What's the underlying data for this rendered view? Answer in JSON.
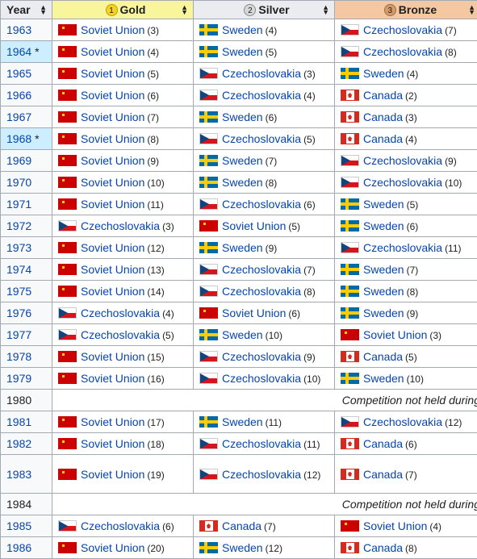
{
  "header": {
    "year": "Year",
    "gold": "Gold",
    "silver": "Silver",
    "bronze": "Bronze",
    "gold_icon": "1",
    "silver_icon": "2",
    "bronze_icon": "3",
    "sort_up": "▲",
    "sort_down": "▼"
  },
  "rows": [
    {
      "year": "1963",
      "host": false,
      "star": "",
      "gold": {
        "team": "Soviet Union",
        "count": "(3)"
      },
      "silver": {
        "team": "Sweden",
        "count": "(4)"
      },
      "bronze": {
        "team": "Czechoslovakia",
        "count": "(7)"
      }
    },
    {
      "year": "1964",
      "host": true,
      "star": "*",
      "gold": {
        "team": "Soviet Union",
        "count": "(4)"
      },
      "silver": {
        "team": "Sweden",
        "count": "(5)"
      },
      "bronze": {
        "team": "Czechoslovakia",
        "count": "(8)"
      }
    },
    {
      "year": "1965",
      "host": false,
      "star": "",
      "gold": {
        "team": "Soviet Union",
        "count": "(5)"
      },
      "silver": {
        "team": "Czechoslovakia",
        "count": "(3)"
      },
      "bronze": {
        "team": "Sweden",
        "count": "(4)"
      }
    },
    {
      "year": "1966",
      "host": false,
      "star": "",
      "gold": {
        "team": "Soviet Union",
        "count": "(6)"
      },
      "silver": {
        "team": "Czechoslovakia",
        "count": "(4)"
      },
      "bronze": {
        "team": "Canada",
        "count": "(2)"
      }
    },
    {
      "year": "1967",
      "host": false,
      "star": "",
      "gold": {
        "team": "Soviet Union",
        "count": "(7)"
      },
      "silver": {
        "team": "Sweden",
        "count": "(6)"
      },
      "bronze": {
        "team": "Canada",
        "count": "(3)"
      }
    },
    {
      "year": "1968",
      "host": true,
      "star": "*",
      "gold": {
        "team": "Soviet Union",
        "count": "(8)"
      },
      "silver": {
        "team": "Czechoslovakia",
        "count": "(5)"
      },
      "bronze": {
        "team": "Canada",
        "count": "(4)"
      }
    },
    {
      "year": "1969",
      "host": false,
      "star": "",
      "gold": {
        "team": "Soviet Union",
        "count": "(9)"
      },
      "silver": {
        "team": "Sweden",
        "count": "(7)"
      },
      "bronze": {
        "team": "Czechoslovakia",
        "count": "(9)"
      }
    },
    {
      "year": "1970",
      "host": false,
      "star": "",
      "gold": {
        "team": "Soviet Union",
        "count": "(10)"
      },
      "silver": {
        "team": "Sweden",
        "count": "(8)"
      },
      "bronze": {
        "team": "Czechoslovakia",
        "count": "(10)"
      }
    },
    {
      "year": "1971",
      "host": false,
      "star": "",
      "gold": {
        "team": "Soviet Union",
        "count": "(11)"
      },
      "silver": {
        "team": "Czechoslovakia",
        "count": "(6)"
      },
      "bronze": {
        "team": "Sweden",
        "count": "(5)"
      }
    },
    {
      "year": "1972",
      "host": false,
      "star": "",
      "gold": {
        "team": "Czechoslovakia",
        "count": "(3)"
      },
      "silver": {
        "team": "Soviet Union",
        "count": "(5)"
      },
      "bronze": {
        "team": "Sweden",
        "count": "(6)"
      }
    },
    {
      "year": "1973",
      "host": false,
      "star": "",
      "gold": {
        "team": "Soviet Union",
        "count": "(12)"
      },
      "silver": {
        "team": "Sweden",
        "count": "(9)"
      },
      "bronze": {
        "team": "Czechoslovakia",
        "count": "(11)"
      }
    },
    {
      "year": "1974",
      "host": false,
      "star": "",
      "gold": {
        "team": "Soviet Union",
        "count": "(13)"
      },
      "silver": {
        "team": "Czechoslovakia",
        "count": "(7)"
      },
      "bronze": {
        "team": "Sweden",
        "count": "(7)"
      }
    },
    {
      "year": "1975",
      "host": false,
      "star": "",
      "gold": {
        "team": "Soviet Union",
        "count": "(14)"
      },
      "silver": {
        "team": "Czechoslovakia",
        "count": "(8)"
      },
      "bronze": {
        "team": "Sweden",
        "count": "(8)"
      }
    },
    {
      "year": "1976",
      "host": false,
      "star": "",
      "gold": {
        "team": "Czechoslovakia",
        "count": "(4)"
      },
      "silver": {
        "team": "Soviet Union",
        "count": "(6)"
      },
      "bronze": {
        "team": "Sweden",
        "count": "(9)"
      }
    },
    {
      "year": "1977",
      "host": false,
      "star": "",
      "gold": {
        "team": "Czechoslovakia",
        "count": "(5)"
      },
      "silver": {
        "team": "Sweden",
        "count": "(10)"
      },
      "bronze": {
        "team": "Soviet Union",
        "count": "(3)"
      }
    },
    {
      "year": "1978",
      "host": false,
      "star": "",
      "gold": {
        "team": "Soviet Union",
        "count": "(15)"
      },
      "silver": {
        "team": "Czechoslovakia",
        "count": "(9)"
      },
      "bronze": {
        "team": "Canada",
        "count": "(5)"
      }
    },
    {
      "year": "1979",
      "host": false,
      "star": "",
      "gold": {
        "team": "Soviet Union",
        "count": "(16)"
      },
      "silver": {
        "team": "Czechoslovakia",
        "count": "(10)"
      },
      "bronze": {
        "team": "Sweden",
        "count": "(10)"
      }
    },
    {
      "year": "1980",
      "notheld": "Competition not held during"
    },
    {
      "year": "1981",
      "host": false,
      "star": "",
      "gold": {
        "team": "Soviet Union",
        "count": "(17)"
      },
      "silver": {
        "team": "Sweden",
        "count": "(11)"
      },
      "bronze": {
        "team": "Czechoslovakia",
        "count": "(12)"
      }
    },
    {
      "year": "1982",
      "host": false,
      "star": "",
      "gold": {
        "team": "Soviet Union",
        "count": "(18)"
      },
      "silver": {
        "team": "Czechoslovakia",
        "count": "(11)"
      },
      "bronze": {
        "team": "Canada",
        "count": "(6)"
      }
    },
    {
      "year": "1983",
      "host": false,
      "star": "",
      "tall": true,
      "gold": {
        "team": "Soviet Union",
        "count": "(19)"
      },
      "silver": {
        "team": "Czechoslovakia",
        "count": "(12)"
      },
      "bronze": {
        "team": "Canada",
        "count": "(7)"
      }
    },
    {
      "year": "1984",
      "notheld": "Competition not held during"
    },
    {
      "year": "1985",
      "host": false,
      "star": "",
      "gold": {
        "team": "Czechoslovakia",
        "count": "(6)"
      },
      "silver": {
        "team": "Canada",
        "count": "(7)"
      },
      "bronze": {
        "team": "Soviet Union",
        "count": "(4)"
      }
    },
    {
      "year": "1986",
      "host": false,
      "star": "",
      "gold": {
        "team": "Soviet Union",
        "count": "(20)"
      },
      "silver": {
        "team": "Sweden",
        "count": "(12)"
      },
      "bronze": {
        "team": "Canada",
        "count": "(8)"
      }
    }
  ],
  "flags": {
    "Soviet Union": {
      "icon": "soviet-union-flag-icon",
      "cls": "flag-su"
    },
    "Sweden": {
      "icon": "sweden-flag-icon",
      "cls": "flag-se"
    },
    "Czechoslovakia": {
      "icon": "czechoslovakia-flag-icon",
      "cls": "flag-cs"
    },
    "Canada": {
      "icon": "canada-flag-icon",
      "cls": "flag-ca"
    }
  },
  "colors": {
    "gold_header": "#f8f59c",
    "silver_header": "#eaecf0",
    "bronze_header": "#f5c8a2",
    "host_year": "#cceeff",
    "link": "#0645ad"
  }
}
